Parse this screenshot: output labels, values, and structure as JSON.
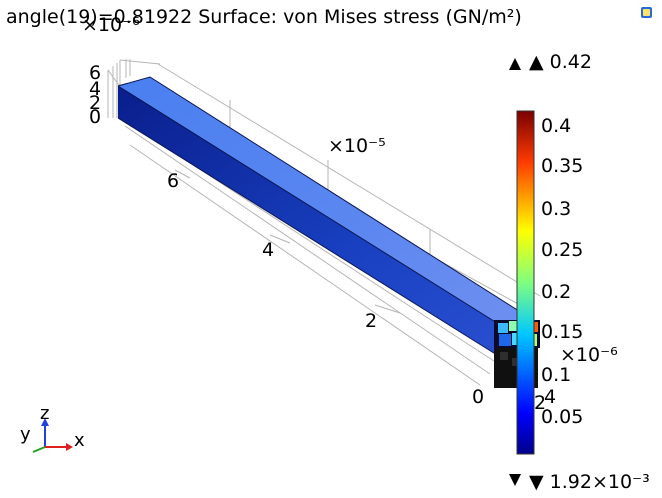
{
  "title": "angle(19)=0.81922   Surface: von Mises stress (GN/m²)",
  "top_scale_label": "×10⁻⁶",
  "mid_scale_label": "×10⁻⁵",
  "right_scale_label": "×10⁻⁶",
  "max_label": "▲ 0.42",
  "min_label": "▼ 1.92×10⁻³",
  "left_ticks": [
    "6",
    "4",
    "2",
    "0"
  ],
  "axis_ticks": [
    "6",
    "4",
    "2",
    "0",
    "2"
  ],
  "right_small_ticks": [
    "4"
  ],
  "colorbar_ticks": [
    "0.4",
    "0.35",
    "0.3",
    "0.25",
    "0.2",
    "0.15",
    "0.1",
    "0.05"
  ],
  "triad": {
    "y": "y",
    "z": "z",
    "x": "x"
  },
  "colors": {
    "beam_top": "#5f8ff5",
    "beam_side": "#1432a8",
    "accent_red": "#b00000",
    "accent_blue": "#00008b"
  }
}
